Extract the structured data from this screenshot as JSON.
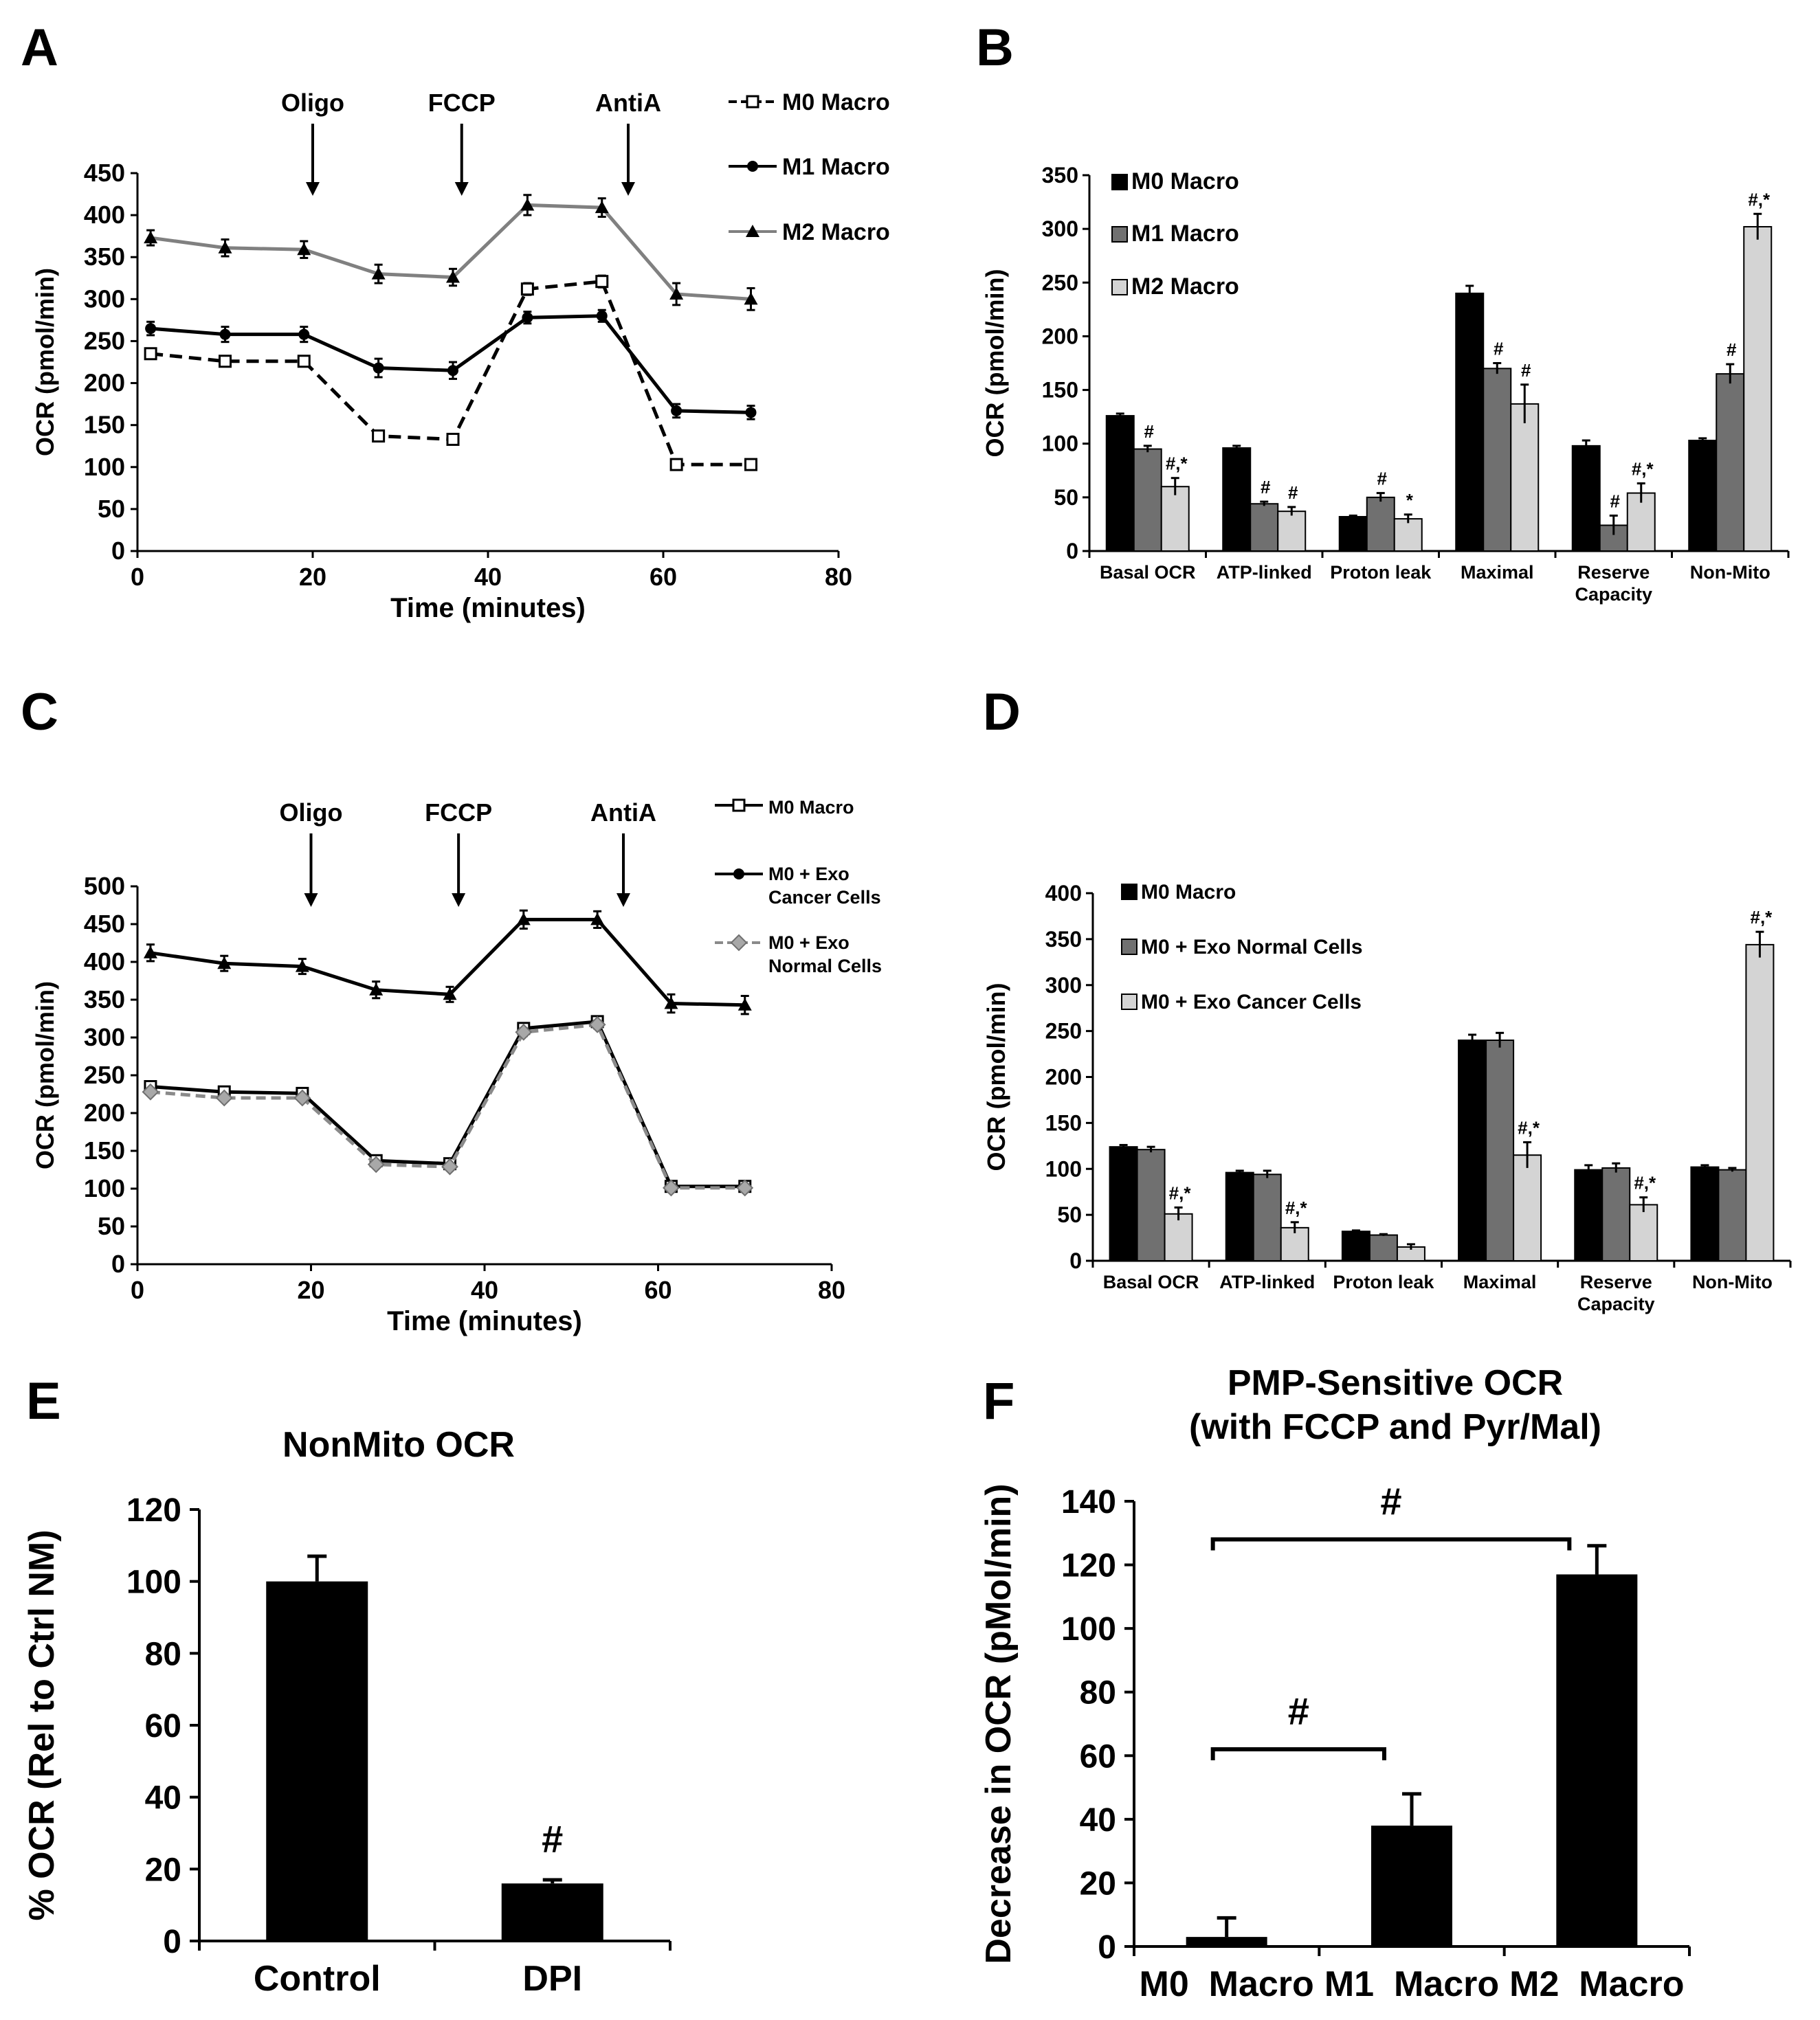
{
  "colors": {
    "M0": "#000000",
    "M1": "#000000",
    "M2": "#808080",
    "barDark": "#000000",
    "barMid": "#707070",
    "barLight": "#d4d4d4",
    "grayLine": "#8a8a8a"
  },
  "chart_data": [
    {
      "id": "A",
      "type": "line",
      "panel": "A",
      "ylabel": "OCR (pmol/min)",
      "xlabel": "Time (minutes)",
      "xlim": [
        0,
        80
      ],
      "ylim": [
        0,
        450
      ],
      "xticks": [
        0,
        20,
        40,
        60,
        80
      ],
      "yticks": [
        0,
        50,
        100,
        150,
        200,
        250,
        300,
        350,
        400,
        450
      ],
      "x": [
        1.5,
        10,
        19,
        27.5,
        36,
        44.5,
        53,
        61.5,
        70
      ],
      "injections": [
        {
          "label": "Oligo",
          "x": 20
        },
        {
          "label": "FCCP",
          "x": 37
        },
        {
          "label": "AntiA",
          "x": 56
        }
      ],
      "series": [
        {
          "name": "M0 Macro",
          "style": "dashed",
          "marker": "open-square",
          "legend_marker": "open-square",
          "values": [
            235,
            226,
            226,
            137,
            133,
            312,
            321,
            103,
            103
          ],
          "err": [
            4,
            3,
            3,
            3,
            3,
            7,
            7,
            3,
            3
          ]
        },
        {
          "name": "M1 Macro",
          "style": "solid",
          "marker": "filled-circle",
          "legend_marker": "filled-circle",
          "values": [
            265,
            258,
            258,
            218,
            215,
            278,
            280,
            167,
            165
          ],
          "err": [
            8,
            9,
            9,
            11,
            10,
            7,
            7,
            8,
            8
          ]
        },
        {
          "name": "M2 Macro",
          "style": "gray",
          "marker": "filled-triangle",
          "legend_marker": "filled-triangle",
          "values": [
            373,
            361,
            359,
            330,
            326,
            412,
            409,
            306,
            300
          ],
          "err": [
            9,
            10,
            10,
            11,
            10,
            12,
            11,
            13,
            13
          ]
        }
      ]
    },
    {
      "id": "B",
      "type": "bar",
      "panel": "B",
      "ylabel": "OCR (pmol/min)",
      "ylim": [
        0,
        350
      ],
      "yticks": [
        0,
        50,
        100,
        150,
        200,
        250,
        300,
        350
      ],
      "categories": [
        "Basal OCR",
        "ATP-linked",
        "Proton leak",
        "Maximal",
        "Reserve Capacity",
        "Non-Mito"
      ],
      "series": [
        {
          "name": "M0 Macro",
          "values": [
            126,
            96,
            32,
            240,
            98,
            103
          ],
          "err": [
            2,
            2,
            1,
            7,
            5,
            2
          ],
          "sig": [
            "",
            "",
            "",
            "",
            "",
            ""
          ]
        },
        {
          "name": "M1 Macro",
          "values": [
            95,
            44,
            50,
            170,
            24,
            165
          ],
          "err": [
            3,
            2,
            4,
            5,
            9,
            9
          ],
          "sig": [
            "#",
            "#",
            "#",
            "#",
            "#",
            "#"
          ]
        },
        {
          "name": "M2 Macro",
          "values": [
            60,
            37,
            30,
            137,
            54,
            302
          ],
          "err": [
            8,
            4,
            4,
            18,
            9,
            12
          ],
          "sig": [
            "#,*",
            "#",
            "*",
            "#",
            "#,*",
            "#,*"
          ]
        }
      ]
    },
    {
      "id": "C",
      "type": "line",
      "panel": "C",
      "ylabel": "OCR (pmol/min)",
      "xlabel": "Time (minutes)",
      "xlim": [
        0,
        80
      ],
      "ylim": [
        0,
        500
      ],
      "xticks": [
        0,
        20,
        40,
        60,
        80
      ],
      "yticks": [
        0,
        50,
        100,
        150,
        200,
        250,
        300,
        350,
        400,
        450,
        500
      ],
      "x": [
        1.5,
        10,
        19,
        27.5,
        36,
        44.5,
        53,
        61.5,
        70
      ],
      "injections": [
        {
          "label": "Oligo",
          "x": 20
        },
        {
          "label": "FCCP",
          "x": 37
        },
        {
          "label": "AntiA",
          "x": 56
        }
      ],
      "series": [
        {
          "name": "M0 Macro",
          "style": "solid",
          "marker": "open-square",
          "legend_marker": "open-square",
          "values": [
            235,
            228,
            226,
            137,
            133,
            312,
            321,
            103,
            103
          ],
          "err": [
            4,
            3,
            3,
            3,
            3,
            6,
            6,
            3,
            3
          ]
        },
        {
          "name": "M0 + Exo Cancer Cells",
          "legend_lines": [
            "M0 + Exo",
            "Cancer Cells"
          ],
          "style": "solid",
          "marker": "filled-triangle",
          "legend_marker": "filled-circle",
          "values": [
            412,
            398,
            394,
            363,
            357,
            456,
            456,
            345,
            343
          ],
          "err": [
            11,
            10,
            10,
            11,
            10,
            12,
            11,
            12,
            12
          ]
        },
        {
          "name": "M0 + Exo Normal Cells",
          "legend_lines": [
            "M0 + Exo",
            "Normal Cells"
          ],
          "style": "gray-dashed",
          "marker": "gray-diamond",
          "legend_marker": "gray-diamond",
          "values": [
            228,
            220,
            220,
            132,
            129,
            307,
            317,
            101,
            101
          ],
          "err": [
            3,
            3,
            3,
            3,
            3,
            5,
            5,
            3,
            3
          ]
        }
      ]
    },
    {
      "id": "D",
      "type": "bar",
      "panel": "D",
      "ylabel": "OCR (pmol/min)",
      "ylim": [
        0,
        400
      ],
      "yticks": [
        0,
        50,
        100,
        150,
        200,
        250,
        300,
        350,
        400
      ],
      "categories": [
        "Basal OCR",
        "ATP-linked",
        "Proton leak",
        "Maximal",
        "Reserve Capacity",
        "Non-Mito"
      ],
      "series": [
        {
          "name": "M0 Macro",
          "values": [
            124,
            96,
            32,
            240,
            99,
            102
          ],
          "err": [
            2,
            2,
            1,
            6,
            5,
            2
          ],
          "sig": [
            "",
            "",
            "",
            "",
            "",
            ""
          ]
        },
        {
          "name": "M0 + Exo Normal Cells",
          "values": [
            121,
            94,
            28,
            240,
            101,
            99
          ],
          "err": [
            3,
            4,
            1,
            8,
            5,
            2
          ],
          "sig": [
            "",
            "",
            "",
            "",
            "",
            ""
          ]
        },
        {
          "name": "M0 + Exo Cancer Cells",
          "values": [
            51,
            36,
            15,
            115,
            61,
            344
          ],
          "err": [
            7,
            6,
            3,
            14,
            8,
            14
          ],
          "sig": [
            "#,*",
            "#,*",
            "",
            "#,*",
            "#,*",
            "#,*"
          ]
        }
      ]
    },
    {
      "id": "E",
      "type": "bar",
      "panel": "E",
      "title": "NonMito OCR",
      "ylabel": "% OCR (Rel to Ctrl NM)",
      "ylim": [
        0,
        120
      ],
      "yticks": [
        0,
        20,
        40,
        60,
        80,
        100,
        120
      ],
      "categories": [
        "Control",
        "DPI"
      ],
      "values": [
        100,
        16
      ],
      "err": [
        7,
        1
      ],
      "sig": [
        "",
        "#"
      ]
    },
    {
      "id": "F",
      "type": "bar",
      "panel": "F",
      "title": "PMP-Sensitive  OCR",
      "subtitle": "(with FCCP and Pyr/Mal)",
      "ylabel": "Decrease in OCR (pMol/min)",
      "ylim": [
        0,
        140
      ],
      "yticks": [
        0,
        20,
        40,
        60,
        80,
        100,
        120,
        140
      ],
      "categories": [
        "M0  Macro",
        "M1  Macro",
        "M2  Macro"
      ],
      "values": [
        3,
        38,
        117
      ],
      "err": [
        6,
        10,
        9
      ],
      "brackets": [
        {
          "from": 0,
          "to": 1,
          "label": "#",
          "y": 62
        },
        {
          "from": 0,
          "to": 2,
          "label": "#",
          "y": 128
        }
      ]
    }
  ]
}
